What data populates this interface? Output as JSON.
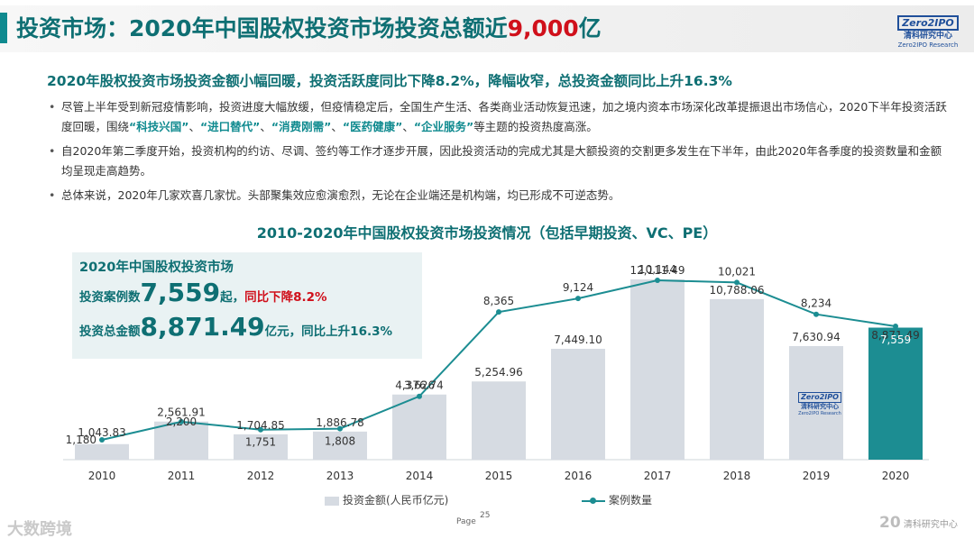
{
  "header": {
    "title_main": "投资市场：2020年中国股权投资市场投资总额近",
    "title_highlight": "9,000",
    "title_tail": "亿",
    "logo_mark": "Zero2IPO",
    "logo_cn": "清科研究中心",
    "logo_en": "Zero2IPO Research"
  },
  "subtitle": "2020年股权投资市场投资金额小幅回暖，投资活跃度同比下降8.2%，降幅收窄，总投资金额同比上升16.3%",
  "bullets": {
    "b1_part1": "尽管上半年受到新冠疫情影响，投资进度大幅放缓，但疫情稳定后，全国生产生活、各类商业活动恢复迅速，加之境内资本市场深化改革提振退出市场信心，2020下半年投资活跃度回暖，围绕",
    "b1_q1": "“科技兴国”",
    "b1_q2": "“进口替代”",
    "b1_q3": "“消费刚需”",
    "b1_q4": "“医药健康”",
    "b1_q5": "“企业服务”",
    "sep": "、",
    "b1_tail": "等主题的投资热度高涨。",
    "b2": "自2020年第二季度开始，投资机构的约访、尽调、签约等工作才逐步开展，因此投资活动的完成尤其是大额投资的交割更多发生在下半年，由此2020年各季度的投资数量和金额均呈现走高趋势。",
    "b3": "总体来说，2020年几家欢喜几家忧。头部聚集效应愈演愈烈，无论在企业端还是机构端，均已形成不可逆态势。"
  },
  "kpi": {
    "title": "2020年中国股权投资市场",
    "cases_label": "投资案例数",
    "cases_value": "7,559",
    "cases_unit": "起，",
    "cases_change": "同比下降8.2%",
    "amount_label": "投资总金额",
    "amount_value": "8,871.49",
    "amount_unit": "亿元，",
    "amount_change": "同比上升16.3%"
  },
  "inner_logo": {
    "mark": "Zero2IPO",
    "cn": "清科研究中心",
    "en": "Zero2IPO Research"
  },
  "footer": {
    "page_label": "Page",
    "page_num": "25",
    "wm_left": "大数跨境",
    "wm_right_num": "20",
    "wm_right_text": "清科研究中心"
  },
  "colors": {
    "teal": "#0e6f73",
    "bar": "#d6dbe2",
    "bar_highlight": "#1c8d92",
    "line": "#1c8d92",
    "red": "#d0101b"
  },
  "chart_data": {
    "type": "bar",
    "title": "2010-2020年中国股权投资市场投资情况（包括早期投资、VC、PE）",
    "categories": [
      "2010",
      "2011",
      "2012",
      "2013",
      "2014",
      "2015",
      "2016",
      "2017",
      "2018",
      "2019",
      "2020"
    ],
    "series": [
      {
        "name": "投资金额(人民币亿元)",
        "type": "bar",
        "values": [
          1043.83,
          2561.91,
          1704.85,
          1886.78,
          4376.74,
          5254.96,
          7449.1,
          12111.49,
          10788.06,
          7630.94,
          8871.49
        ],
        "labels": [
          "1,043.83",
          "2,561.91",
          "1,704.85",
          "1,886.78",
          "4,376.74",
          "5,254.96",
          "7,449.10",
          "12,111.49",
          "10,788.06",
          "7,630.94",
          "8,871.49"
        ]
      },
      {
        "name": "案例数量",
        "type": "line",
        "values": [
          1180,
          2200,
          1751,
          1808,
          3626,
          8365,
          9124,
          10144,
          10021,
          8234,
          7559
        ],
        "labels": [
          "1,180",
          "2,200",
          "1,751",
          "1,808",
          "3,626",
          "8,365",
          "9,124",
          "10,144",
          "10,021",
          "8,234",
          "7,559"
        ]
      }
    ],
    "highlight_category": "2020",
    "legend_position": "bottom",
    "grid": false
  }
}
